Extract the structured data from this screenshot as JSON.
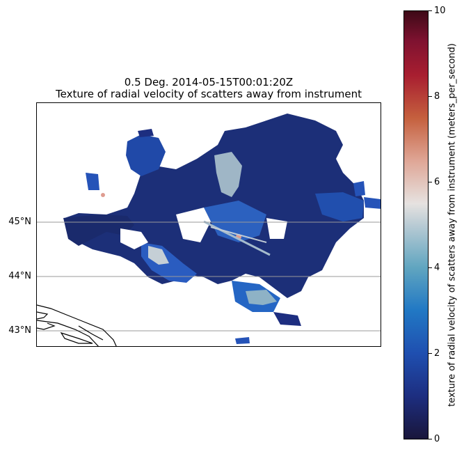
{
  "title": {
    "line1": "0.5 Deg. 2014-05-15T00:01:20Z",
    "line2": "Texture of radial velocity of scatters away from instrument"
  },
  "map": {
    "lat_labels": [
      "45°N",
      "44°N",
      "43°N"
    ],
    "gridlines": "latitude only",
    "coastline": "lower-left corner"
  },
  "colorbar": {
    "label": "texture of radial velocity of scatters away from instrument (meters_per_second)",
    "ticks": [
      "0",
      "2",
      "4",
      "6",
      "8",
      "10"
    ],
    "range": [
      0,
      10
    ],
    "colors": [
      "#19163b",
      "#1f4fb0",
      "#2178c4",
      "#b9cbd4",
      "#e6e2e0",
      "#dfa696",
      "#c5603e",
      "#a81e30",
      "#3d0a17"
    ]
  }
}
